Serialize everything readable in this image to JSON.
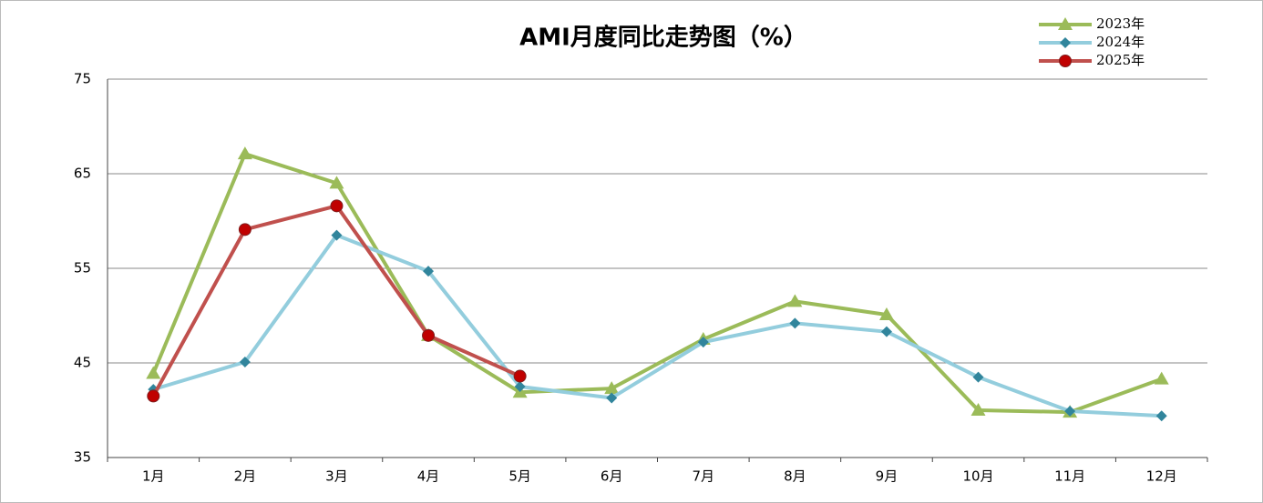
{
  "chart_data": {
    "type": "line",
    "title": "AMI月度同比走势图（%）",
    "categories": [
      "1月",
      "2月",
      "3月",
      "4月",
      "5月",
      "6月",
      "7月",
      "8月",
      "9月",
      "10月",
      "11月",
      "12月"
    ],
    "series": [
      {
        "name": "2023年",
        "color": "#9bbb59",
        "marker": "triangle",
        "values": [
          43.9,
          67.1,
          64.0,
          47.9,
          41.9,
          42.3,
          47.5,
          51.5,
          50.1,
          40.0,
          39.8,
          43.3
        ]
      },
      {
        "name": "2024年",
        "color": "#93cddd",
        "marker": "diamond",
        "values": [
          42.2,
          45.1,
          58.5,
          54.7,
          42.5,
          41.3,
          47.2,
          49.2,
          48.3,
          43.5,
          39.9,
          39.4
        ]
      },
      {
        "name": "2025年",
        "color": "#c0504d",
        "marker": "circle",
        "values": [
          41.5,
          59.1,
          61.6,
          47.9,
          43.6,
          null,
          null,
          null,
          null,
          null,
          null,
          null
        ]
      }
    ],
    "ylim": [
      35,
      75
    ],
    "yticks": [
      35,
      45,
      55,
      65,
      75
    ],
    "grid": true,
    "legend": "top-right"
  }
}
